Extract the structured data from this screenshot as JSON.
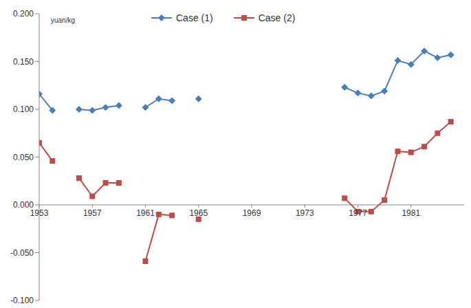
{
  "chart_data": {
    "type": "line",
    "y_label": "yuan/kg",
    "x": [
      1953,
      1954,
      1955,
      1956,
      1957,
      1958,
      1959,
      1960,
      1961,
      1962,
      1963,
      1964,
      1965,
      1966,
      1967,
      1968,
      1969,
      1970,
      1971,
      1972,
      1973,
      1974,
      1975,
      1976,
      1977,
      1978,
      1979,
      1980,
      1981,
      1982,
      1983,
      1984
    ],
    "series": [
      {
        "name": "Case (1)",
        "color": "#4a7ebb",
        "marker": "diamond",
        "values": [
          0.116,
          0.099,
          null,
          0.1,
          0.099,
          0.102,
          0.104,
          null,
          0.102,
          0.111,
          0.109,
          null,
          0.111,
          null,
          null,
          null,
          null,
          null,
          null,
          null,
          null,
          null,
          null,
          0.123,
          0.117,
          0.114,
          0.119,
          0.151,
          0.147,
          0.161,
          0.154,
          0.157
        ]
      },
      {
        "name": "Case (2)",
        "color": "#be4b48",
        "marker": "square",
        "values": [
          0.065,
          0.046,
          null,
          0.028,
          0.009,
          0.023,
          0.023,
          null,
          -0.059,
          -0.01,
          -0.011,
          null,
          -0.015,
          null,
          null,
          null,
          null,
          null,
          null,
          null,
          null,
          null,
          null,
          0.007,
          -0.007,
          -0.007,
          0.005,
          0.056,
          0.055,
          0.061,
          0.075,
          0.087
        ]
      }
    ],
    "xlim": [
      1953,
      1985
    ],
    "xticks": [
      1953,
      1957,
      1961,
      1965,
      1969,
      1973,
      1977,
      1981
    ],
    "ylim": [
      -0.1,
      0.2
    ],
    "yticks": [
      {
        "value": -0.1,
        "label": "-0.100"
      },
      {
        "value": -0.05,
        "label": "-0.050"
      },
      {
        "value": 0,
        "label": "0.000"
      },
      {
        "value": 0.05,
        "label": "0.050"
      },
      {
        "value": 0.1,
        "label": "0.100"
      },
      {
        "value": 0.15,
        "label": "0.150"
      },
      {
        "value": 0.2,
        "label": "0.200"
      }
    ],
    "grid": false,
    "legend": "top"
  }
}
